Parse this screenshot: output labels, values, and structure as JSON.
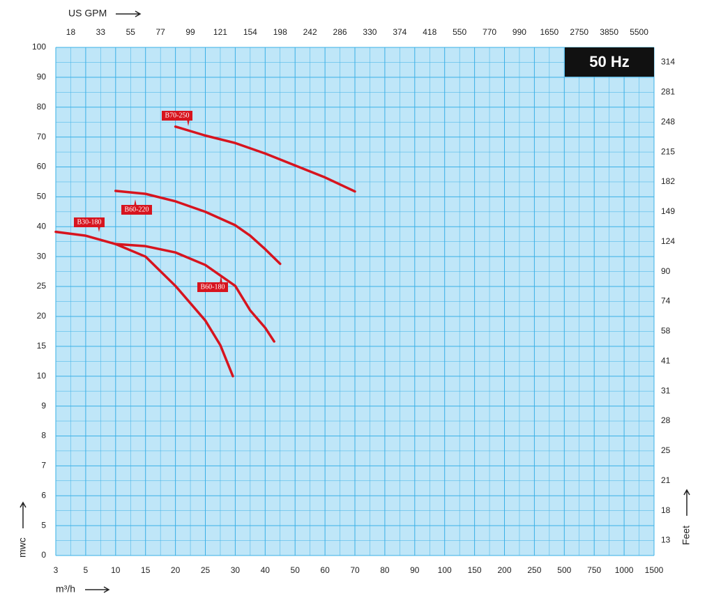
{
  "chart_data": {
    "type": "line",
    "title": "50 Hz",
    "x_label": "m³/h",
    "y_label": "mwc",
    "x2_label": "US GPM",
    "y2_label": "Feet",
    "xticks": [
      3,
      5,
      10,
      15,
      20,
      25,
      30,
      40,
      50,
      60,
      70,
      80,
      90,
      100,
      150,
      200,
      250,
      500,
      750,
      1000,
      1500
    ],
    "xlim": [
      3,
      1500
    ],
    "yticks": [
      0,
      5,
      6,
      7,
      8,
      9,
      10,
      15,
      20,
      25,
      30,
      40,
      50,
      60,
      70,
      80,
      90,
      100
    ],
    "ylim": [
      0,
      100
    ],
    "x2ticks": [
      18,
      33,
      55,
      77,
      99,
      121,
      154,
      198,
      242,
      286,
      330,
      374,
      418,
      550,
      770,
      990,
      1650,
      2750,
      3850,
      5500
    ],
    "y2ticks": [
      13,
      18,
      21,
      25,
      28,
      31,
      41,
      58,
      74,
      90,
      124,
      149,
      182,
      215,
      248,
      281,
      314
    ],
    "grid": true,
    "series": [
      {
        "name": "B70-250",
        "color": "#d7141e",
        "x": [
          20,
          25,
          30,
          40,
          50,
          60,
          70
        ],
        "values": [
          73.5,
          70.5,
          68,
          64.5,
          60.5,
          56.5,
          51.8
        ]
      },
      {
        "name": "B60-220",
        "color": "#d7141e",
        "x": [
          10,
          15,
          20,
          25,
          30,
          35,
          40,
          45
        ],
        "values": [
          52,
          51,
          48.5,
          45,
          40.5,
          37,
          32.5,
          28.8
        ]
      },
      {
        "name": "B30-180",
        "color": "#d7141e",
        "x": [
          3,
          5,
          10,
          15,
          20,
          25,
          27.5,
          29.6
        ],
        "values": [
          38.3,
          37,
          34.2,
          30,
          25.1,
          19.3,
          15.2,
          10
        ]
      },
      {
        "name": "B60-180",
        "color": "#d7141e",
        "x": [
          10,
          15,
          20,
          25,
          30,
          35,
          40,
          43
        ],
        "values": [
          34.2,
          33.5,
          31.4,
          28.6,
          25.1,
          21,
          18.1,
          15.8
        ]
      }
    ]
  }
}
